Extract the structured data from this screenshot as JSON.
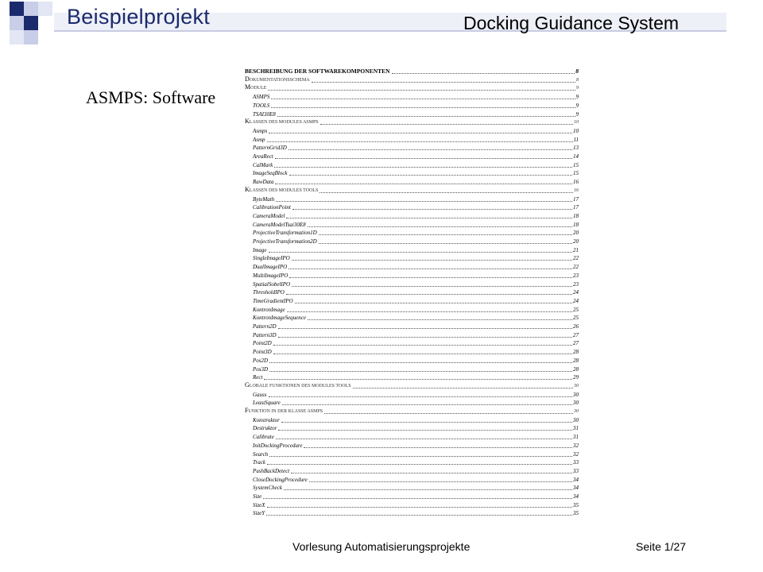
{
  "slide": {
    "title": "Beispielprojekt",
    "subtitle": "Docking Guidance System",
    "side_label": "ASMPS: Software",
    "footer": "Vorlesung Automatisierungsprojekte",
    "page": "Seite 1/27"
  },
  "toc": [
    {
      "kind": "head",
      "label": "BESCHREIBUNG DER SOFTWAREKOMPONENTEN",
      "page": "8"
    },
    {
      "kind": "sec",
      "label": "DOKUMENTATIONSSCHEMA",
      "page": "8"
    },
    {
      "kind": "sec",
      "label": "MODULE",
      "page": "9"
    },
    {
      "kind": "item",
      "label": "ASMPS",
      "page": "9"
    },
    {
      "kind": "item",
      "label": "TOOLS",
      "page": "9"
    },
    {
      "kind": "item",
      "label": "TSAI30E8",
      "page": "9"
    },
    {
      "kind": "sec",
      "label": "KLASSEN DES MODULES ASMPS",
      "page": "10"
    },
    {
      "kind": "item",
      "label": "Asmps",
      "page": "10"
    },
    {
      "kind": "item",
      "label": "Asmp",
      "page": "11"
    },
    {
      "kind": "item",
      "label": "PatternGrid3D",
      "page": "13"
    },
    {
      "kind": "item",
      "label": "AreaRect",
      "page": "14"
    },
    {
      "kind": "item",
      "label": "CalMark",
      "page": "15"
    },
    {
      "kind": "item",
      "label": "ImageSeqBlock",
      "page": "15"
    },
    {
      "kind": "item",
      "label": "RawData",
      "page": "16"
    },
    {
      "kind": "sec",
      "label": "KLASSEN DES MODULES TOOLS",
      "page": "16"
    },
    {
      "kind": "item",
      "label": "ByteMath",
      "page": "17"
    },
    {
      "kind": "item",
      "label": "CalibrationPoint",
      "page": "17"
    },
    {
      "kind": "item",
      "label": "CameraModel",
      "page": "18"
    },
    {
      "kind": "item",
      "label": "CameraModelTsai30E8",
      "page": "18"
    },
    {
      "kind": "item",
      "label": "ProjectiveTransformation1D",
      "page": "20"
    },
    {
      "kind": "item",
      "label": "ProjectiveTransformation2D",
      "page": "20"
    },
    {
      "kind": "item",
      "label": "Image",
      "page": "21"
    },
    {
      "kind": "item",
      "label": "SingleImageIPO",
      "page": "22"
    },
    {
      "kind": "item",
      "label": "DualImageIPO",
      "page": "22"
    },
    {
      "kind": "item",
      "label": "MultiImageIPO",
      "page": "23"
    },
    {
      "kind": "item",
      "label": "SpatialSobelIPO",
      "page": "23"
    },
    {
      "kind": "item",
      "label": "ThresholdIPO",
      "page": "24"
    },
    {
      "kind": "item",
      "label": "TimeGradientIPO",
      "page": "24"
    },
    {
      "kind": "item",
      "label": "KontronImage",
      "page": "25"
    },
    {
      "kind": "item",
      "label": "KontronImageSequence",
      "page": "25"
    },
    {
      "kind": "item",
      "label": "Pattern2D",
      "page": "26"
    },
    {
      "kind": "item",
      "label": "Pattern3D",
      "page": "27"
    },
    {
      "kind": "item",
      "label": "Point2D",
      "page": "27"
    },
    {
      "kind": "item",
      "label": "Point3D",
      "page": "28"
    },
    {
      "kind": "item",
      "label": "Pos2D",
      "page": "28"
    },
    {
      "kind": "item",
      "label": "Pos3D",
      "page": "28"
    },
    {
      "kind": "item",
      "label": "Rect",
      "page": "29"
    },
    {
      "kind": "sec",
      "label": "GLOBALE FUNKTIONEN DES MODULES TOOLS",
      "page": "30"
    },
    {
      "kind": "item",
      "label": "Gauss",
      "page": "30"
    },
    {
      "kind": "item",
      "label": "LeastSquare",
      "page": "30"
    },
    {
      "kind": "sec",
      "label": "FUNKTION IN DER KLASSE ASMPS",
      "page": "30"
    },
    {
      "kind": "item",
      "label": "Konstruktor",
      "page": "30"
    },
    {
      "kind": "item",
      "label": "Destruktor",
      "page": "31"
    },
    {
      "kind": "item",
      "label": "Calibrate",
      "page": "31"
    },
    {
      "kind": "item",
      "label": "InitDockingProcedure",
      "page": "32"
    },
    {
      "kind": "item",
      "label": "Search",
      "page": "32"
    },
    {
      "kind": "item",
      "label": "Track",
      "page": "33"
    },
    {
      "kind": "item",
      "label": "PushBackDetect",
      "page": "33"
    },
    {
      "kind": "item",
      "label": "CloseDockingProcedure",
      "page": "34"
    },
    {
      "kind": "item",
      "label": "SystemCheck",
      "page": "34"
    },
    {
      "kind": "item",
      "label": "Size",
      "page": "34"
    },
    {
      "kind": "item",
      "label": "SizeX",
      "page": "35"
    },
    {
      "kind": "item",
      "label": "SizeY",
      "page": "35"
    }
  ]
}
